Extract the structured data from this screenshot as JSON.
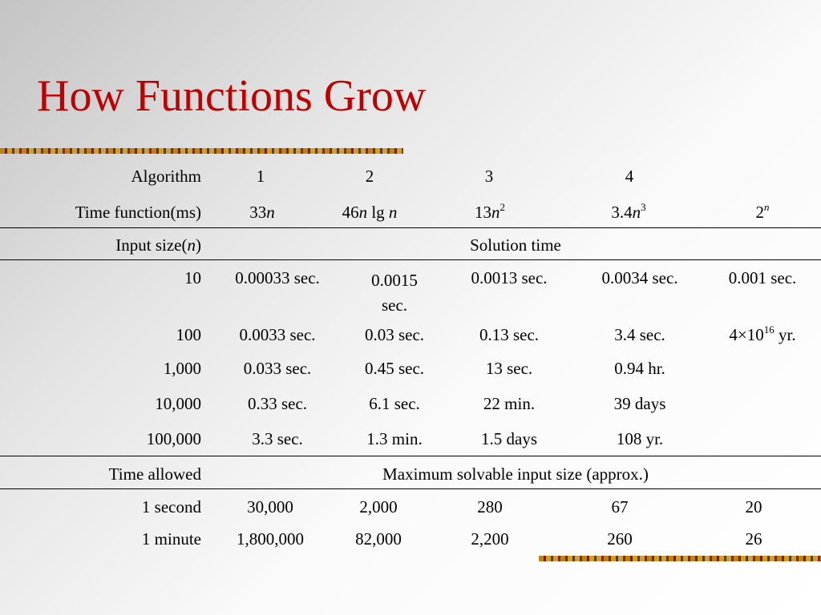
{
  "title": "How Functions Grow",
  "header": {
    "algorithm_label": "Algorithm",
    "algorithms": [
      "1",
      "2",
      "3",
      "4"
    ],
    "time_function_label": "Time function(ms)",
    "time_functions": {
      "f1_coef": "33",
      "f1_var": "n",
      "f2_coef": "46",
      "f2_var": "n",
      "f2_lg": "lg",
      "f2_var2": "n",
      "f3_coef": "13",
      "f3_var": "n",
      "f3_exp": "2",
      "f4_coef": "3.4",
      "f4_var": "n",
      "f4_exp": "3",
      "f5_base": "2",
      "f5_exp": "n"
    }
  },
  "section1": {
    "label_prefix": "Input size(",
    "label_var": "n",
    "label_suffix": ")",
    "heading": "Solution time",
    "rows": [
      {
        "size": "10",
        "cells": [
          "0.00033 sec.",
          "0.0015 sec.",
          "0.0013 sec.",
          "0.0034 sec.",
          "0.001 sec."
        ]
      },
      {
        "size": "100",
        "cells": [
          "0.0033 sec.",
          "0.03 sec.",
          "0.13 sec.",
          "3.4 sec.",
          ""
        ]
      },
      {
        "size": "1,000",
        "cells": [
          "0.033 sec.",
          "0.45 sec.",
          "13 sec.",
          "0.94 hr.",
          ""
        ]
      },
      {
        "size": "10,000",
        "cells": [
          "0.33 sec.",
          "6.1 sec.",
          "22 min.",
          "39 days",
          ""
        ]
      },
      {
        "size": "100,000",
        "cells": [
          "3.3 sec.",
          "1.3 min.",
          "1.5 days",
          "108 yr.",
          ""
        ]
      }
    ],
    "big_value": {
      "mult": "4×10",
      "exp": "16",
      "unit": " yr."
    }
  },
  "section2": {
    "label": "Time allowed",
    "heading": "Maximum solvable input size (approx.)",
    "rows": [
      {
        "time": "1 second",
        "cells": [
          "30,000",
          "2,000",
          "280",
          "67",
          "20"
        ]
      },
      {
        "time": "1 minute",
        "cells": [
          "1,800,000",
          "82,000",
          "2,200",
          "260",
          "26"
        ]
      }
    ]
  }
}
